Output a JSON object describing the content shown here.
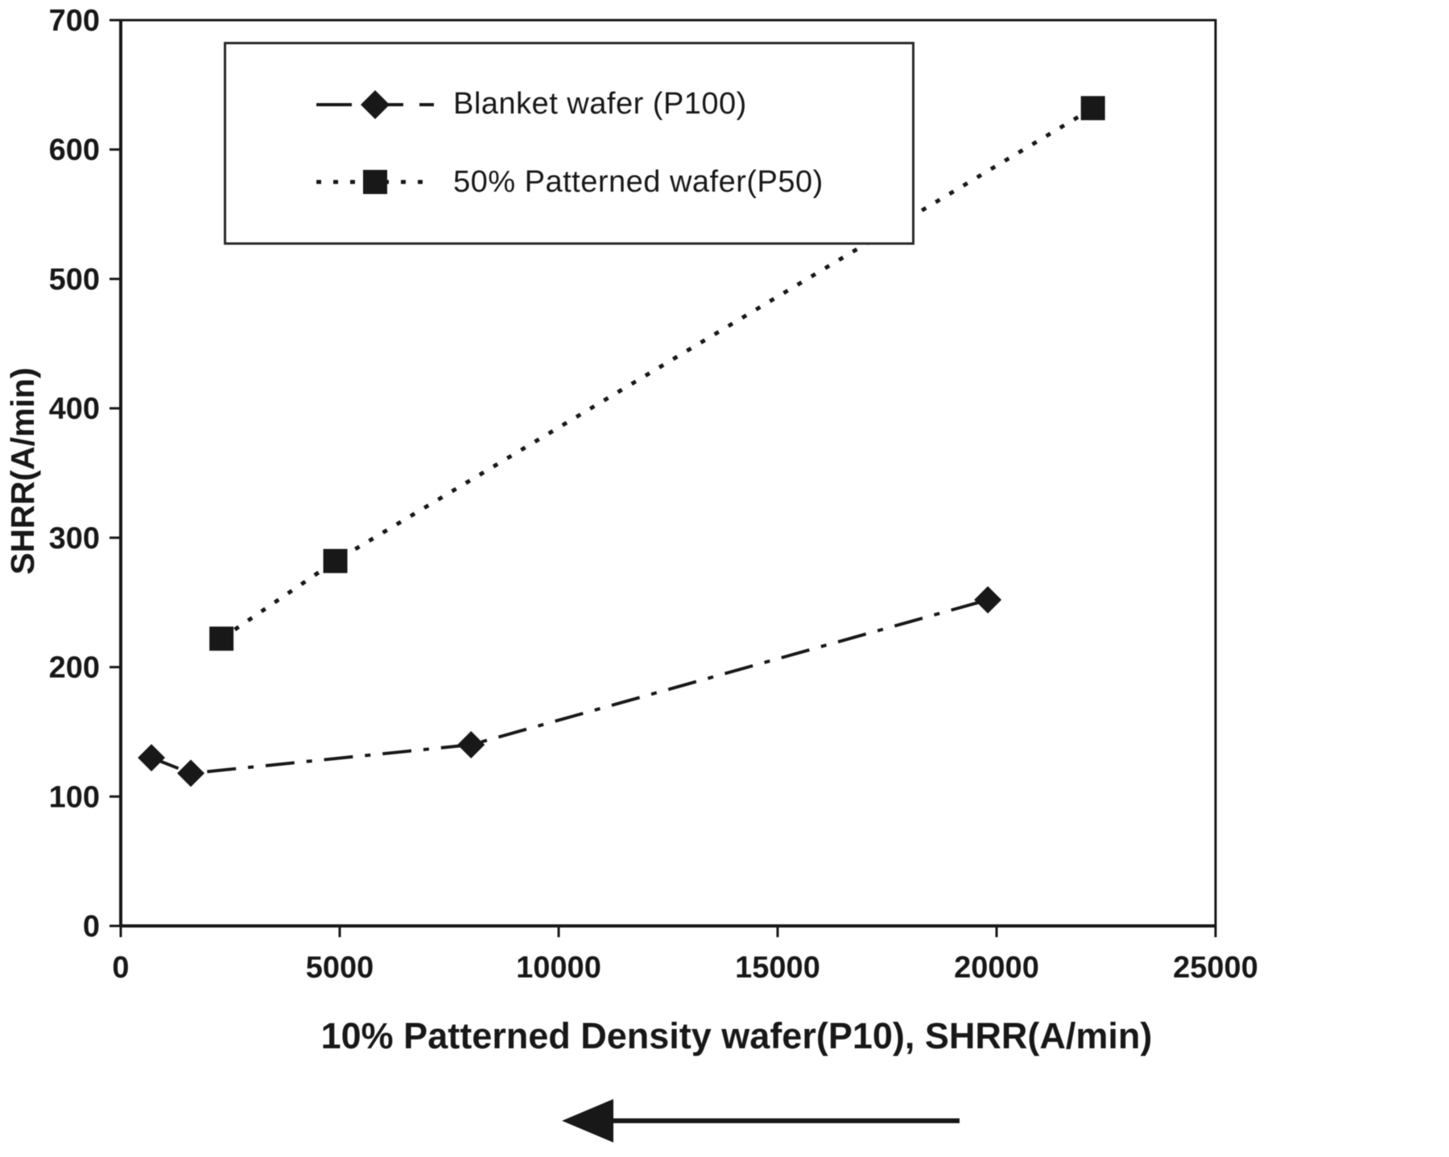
{
  "chart_data": {
    "type": "line",
    "title": "",
    "xlabel": "10% Patterned Density wafer(P10), SHRR(A/min)",
    "ylabel": "SHRR(A/min)",
    "xlim": [
      0,
      25000
    ],
    "ylim": [
      0,
      700
    ],
    "x_ticks": [
      0,
      5000,
      10000,
      15000,
      20000,
      25000
    ],
    "y_ticks": [
      0,
      100,
      200,
      300,
      400,
      500,
      600,
      700
    ],
    "grid": false,
    "legend_position": "top-left-inside",
    "series": [
      {
        "name": "Blanket wafer (P100)",
        "marker": "diamond",
        "line_style": "dash-dot",
        "points": [
          [
            700,
            130
          ],
          [
            1600,
            118
          ],
          [
            8000,
            140
          ],
          [
            19800,
            252
          ]
        ]
      },
      {
        "name": "50% Patterned wafer(P50)",
        "marker": "square",
        "line_style": "dotted",
        "points": [
          [
            2300,
            222
          ],
          [
            4900,
            282
          ],
          [
            22200,
            632
          ]
        ]
      }
    ],
    "annotations": [
      {
        "type": "arrow",
        "direction": "left",
        "location": "below x-axis title"
      }
    ]
  },
  "style": {
    "ink": "#1a1a1a",
    "background": "#ffffff"
  }
}
